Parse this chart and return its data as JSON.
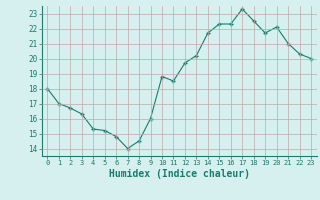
{
  "x": [
    0,
    1,
    2,
    3,
    4,
    5,
    6,
    7,
    8,
    9,
    10,
    11,
    12,
    13,
    14,
    15,
    16,
    17,
    18,
    19,
    20,
    21,
    22,
    23
  ],
  "y": [
    18,
    17,
    16.7,
    16.3,
    15.3,
    15.2,
    14.8,
    14,
    14.5,
    16,
    18.8,
    18.5,
    19.7,
    20.2,
    21.7,
    22.3,
    22.3,
    23.3,
    22.5,
    21.7,
    22.1,
    21,
    20.3,
    20
  ],
  "line_color": "#1a7a6e",
  "marker": "+",
  "bg_color": "#d6f0ef",
  "grid_color": "#c0a8a8",
  "xlabel": "Humidex (Indice chaleur)",
  "xlim": [
    -0.5,
    23.5
  ],
  "ylim": [
    13.5,
    23.5
  ],
  "yticks": [
    14,
    15,
    16,
    17,
    18,
    19,
    20,
    21,
    22,
    23
  ],
  "xticks": [
    0,
    1,
    2,
    3,
    4,
    5,
    6,
    7,
    8,
    9,
    10,
    11,
    12,
    13,
    14,
    15,
    16,
    17,
    18,
    19,
    20,
    21,
    22,
    23
  ]
}
